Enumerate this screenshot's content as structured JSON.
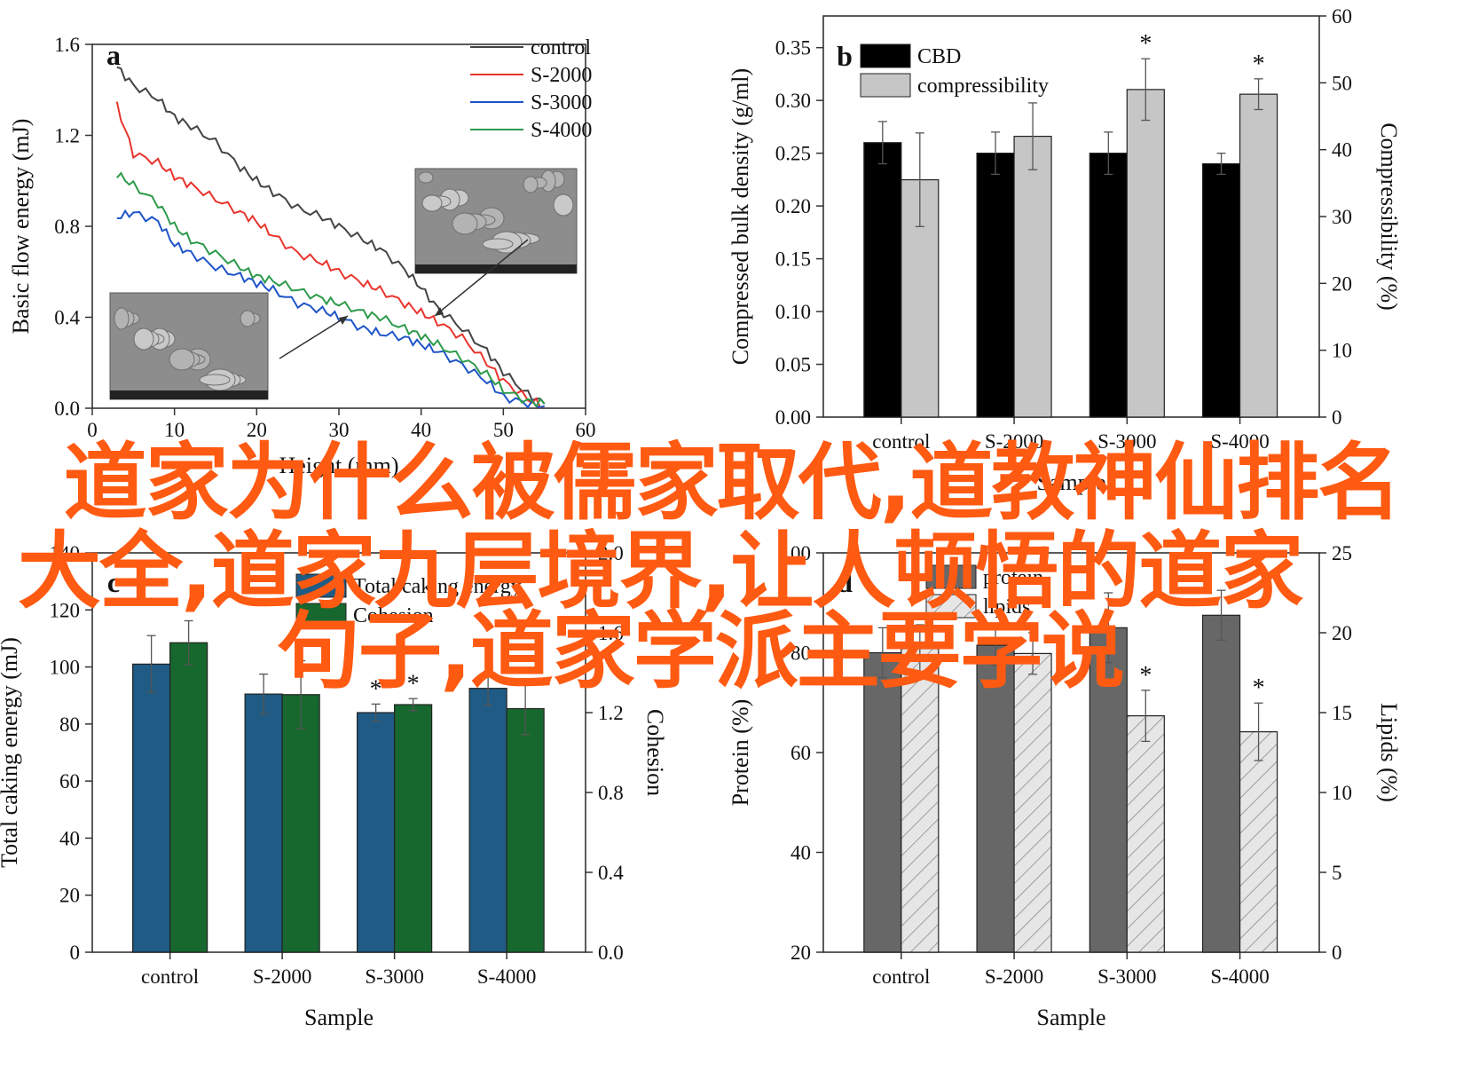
{
  "overlay": {
    "line1": "道家为什么被儒家取代,道教神仙排名",
    "line2": "大全,道家九层境界,让人顿悟的道家",
    "line3": "句子,道家学派主要学说",
    "color": "#ff5a12"
  },
  "chart_data": [
    {
      "id": "a",
      "type": "line",
      "panel_label": "a",
      "xlabel": "Height (mm)",
      "ylabel": "Basic flow energy (mJ)",
      "xlim": [
        0,
        60
      ],
      "ylim": [
        0,
        1.6
      ],
      "xticks": [
        "0",
        "10",
        "20",
        "30",
        "40",
        "50",
        "60"
      ],
      "yticks": [
        "0.0",
        "0.4",
        "0.8",
        "1.2",
        "1.6"
      ],
      "legend_position": "top-right",
      "series": [
        {
          "name": "control",
          "color": "#444444",
          "x": [
            3,
            5,
            8,
            10,
            12,
            15,
            18,
            20,
            22,
            25,
            28,
            30,
            33,
            35,
            38,
            40,
            42,
            45,
            48,
            50,
            53,
            55
          ],
          "y": [
            1.5,
            1.42,
            1.36,
            1.28,
            1.24,
            1.17,
            1.06,
            1.0,
            0.95,
            0.88,
            0.84,
            0.8,
            0.74,
            0.7,
            0.61,
            0.53,
            0.44,
            0.35,
            0.25,
            0.16,
            0.06,
            0.02
          ]
        },
        {
          "name": "S-2000",
          "color": "#e8342c",
          "x": [
            3,
            5,
            8,
            10,
            12,
            15,
            18,
            20,
            22,
            25,
            28,
            30,
            33,
            35,
            38,
            40,
            42,
            45,
            48,
            50,
            53,
            55
          ],
          "y": [
            1.33,
            1.12,
            1.08,
            1.02,
            0.98,
            0.92,
            0.86,
            0.82,
            0.76,
            0.68,
            0.64,
            0.6,
            0.55,
            0.52,
            0.46,
            0.42,
            0.38,
            0.31,
            0.2,
            0.12,
            0.04,
            0.01
          ]
        },
        {
          "name": "S-3000",
          "color": "#1f55c8",
          "x": [
            3,
            5,
            8,
            10,
            12,
            15,
            18,
            20,
            22,
            25,
            28,
            30,
            33,
            35,
            38,
            40,
            42,
            45,
            48,
            50,
            53,
            55
          ],
          "y": [
            0.84,
            0.86,
            0.82,
            0.72,
            0.68,
            0.62,
            0.58,
            0.55,
            0.52,
            0.46,
            0.43,
            0.4,
            0.35,
            0.33,
            0.31,
            0.28,
            0.25,
            0.19,
            0.12,
            0.05,
            0.02,
            0.01
          ]
        },
        {
          "name": "S-4000",
          "color": "#2c9a4a",
          "x": [
            3,
            5,
            8,
            10,
            12,
            15,
            18,
            20,
            22,
            25,
            28,
            30,
            33,
            35,
            38,
            40,
            42,
            45,
            48,
            50,
            53,
            55
          ],
          "y": [
            1.03,
            0.98,
            0.9,
            0.8,
            0.74,
            0.68,
            0.62,
            0.58,
            0.56,
            0.52,
            0.48,
            0.46,
            0.42,
            0.4,
            0.35,
            0.32,
            0.28,
            0.22,
            0.15,
            0.08,
            0.03,
            0.02
          ]
        }
      ]
    },
    {
      "id": "b",
      "type": "bar",
      "panel_label": "b",
      "xlabel": "Sample",
      "ylabel": "Compressed bulk density (g/ml)",
      "ylabel_right": "Compressibility (%)",
      "categories": [
        "control",
        "S-2000",
        "S-3000",
        "S-4000"
      ],
      "ylim": [
        0,
        0.38
      ],
      "ylim_right": [
        0,
        60
      ],
      "yticks": [
        "0.00",
        "0.05",
        "0.10",
        "0.15",
        "0.20",
        "0.25",
        "0.30",
        "0.35"
      ],
      "yticks_right": [
        "0",
        "10",
        "20",
        "30",
        "40",
        "50",
        "60"
      ],
      "legend_position": "top-left",
      "series": [
        {
          "name": "CBD",
          "axis": "left",
          "color": "#000000",
          "values": [
            0.26,
            0.25,
            0.25,
            0.24
          ],
          "errors": [
            0.02,
            0.02,
            0.02,
            0.01
          ],
          "stars": [
            "",
            "",
            "",
            ""
          ]
        },
        {
          "name": "compressibility",
          "axis": "right",
          "color": "#c6c6c6",
          "values": [
            35.5,
            42,
            49,
            48.3
          ],
          "errors": [
            7,
            5,
            4.6,
            2.3
          ],
          "stars": [
            "",
            "",
            "*",
            "*"
          ]
        }
      ]
    },
    {
      "id": "c",
      "type": "bar",
      "panel_label": "c",
      "xlabel": "Sample",
      "ylabel": "Total caking energy (mJ)",
      "ylabel_right": "Cohesion",
      "categories": [
        "control",
        "S-2000",
        "S-3000",
        "S-4000"
      ],
      "ylim": [
        0,
        140
      ],
      "ylim_right": [
        0,
        2.0
      ],
      "yticks": [
        "0",
        "20",
        "40",
        "60",
        "80",
        "100",
        "120",
        "140"
      ],
      "yticks_right": [
        "0.0",
        "0.4",
        "0.8",
        "1.2",
        "1.6",
        "2.0"
      ],
      "legend_position": "top-left",
      "series": [
        {
          "name": "Total caking energy",
          "axis": "left",
          "color": "#1f5b84",
          "values": [
            101,
            90.5,
            84,
            92.5
          ],
          "errors": [
            10,
            7,
            3,
            6
          ],
          "stars": [
            "",
            "",
            "*",
            ""
          ]
        },
        {
          "name": "Cohesion",
          "axis": "right",
          "color": "#17682e",
          "values": [
            1.55,
            1.29,
            1.24,
            1.22
          ],
          "errors": [
            0.11,
            0.17,
            0.03,
            0.13
          ],
          "stars": [
            "",
            "",
            "*",
            ""
          ]
        }
      ]
    },
    {
      "id": "d",
      "type": "bar",
      "panel_label": "d",
      "xlabel": "Sample",
      "ylabel": "Protein (%)",
      "ylabel_right": "Lipids (%)",
      "categories": [
        "control",
        "S-2000",
        "S-3000",
        "S-4000"
      ],
      "ylim": [
        20,
        100
      ],
      "ylim_right": [
        0,
        25
      ],
      "yticks": [
        "20",
        "40",
        "60",
        "80",
        "100"
      ],
      "yticks_right": [
        "0",
        "5",
        "10",
        "15",
        "20",
        "25"
      ],
      "legend_position": "top-left",
      "series": [
        {
          "name": "protein",
          "axis": "left",
          "color": "#676767",
          "values": [
            80,
            81.5,
            85,
            87.5
          ],
          "errors": [
            5,
            4,
            7,
            5
          ],
          "stars": [
            "",
            "",
            "",
            ""
          ]
        },
        {
          "name": "lipids",
          "axis": "right",
          "color": "#dedede",
          "hatch": true,
          "values": [
            19,
            18.7,
            14.8,
            13.8
          ],
          "errors": [
            1.5,
            1.3,
            1.6,
            1.8
          ],
          "stars": [
            "",
            "",
            "*",
            "*"
          ]
        }
      ]
    }
  ]
}
